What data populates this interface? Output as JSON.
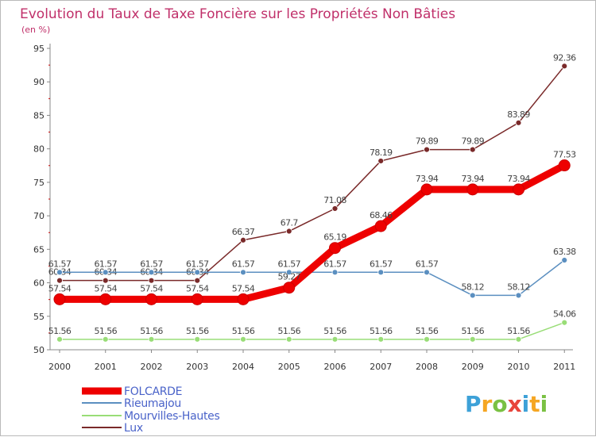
{
  "chart_data": {
    "type": "line",
    "title": "Evolution du Taux de Taxe Foncière sur les Propriétés Non Bâties",
    "subtitle": "(en %)",
    "xlabel": "",
    "ylabel": "(en %)",
    "ylim": [
      50,
      95
    ],
    "yticks": [
      "50",
      "55",
      "60",
      "65",
      "70",
      "75",
      "80",
      "85",
      "90",
      "95"
    ],
    "categories": [
      "2000",
      "2001",
      "2002",
      "2003",
      "2004",
      "2005",
      "2006",
      "2007",
      "2008",
      "2009",
      "2010",
      "2011"
    ],
    "grid": false,
    "legend_position": "bottom-left",
    "series": [
      {
        "name": "FOLCARDE",
        "color": "#ee0000",
        "values": [
          57.54,
          57.54,
          57.54,
          57.54,
          57.54,
          59.27,
          65.19,
          68.46,
          73.94,
          73.94,
          73.94,
          77.53
        ],
        "labels": [
          "57.54",
          "57.54",
          "57.54",
          "57.54",
          "57.54",
          "59.27",
          "65.19",
          "68.46",
          "73.94",
          "73.94",
          "73.94",
          "77.53"
        ]
      },
      {
        "name": "Rieumajou",
        "color": "#5b8fc0",
        "values": [
          61.57,
          61.57,
          61.57,
          61.57,
          61.57,
          61.57,
          61.57,
          61.57,
          61.57,
          58.12,
          58.12,
          63.38
        ],
        "labels": [
          "61.57",
          "61.57",
          "61.57",
          "61.57",
          "61.57",
          "61.57",
          "61.57",
          "61.57",
          "61.57",
          "58.12",
          "58.12",
          "63.38"
        ]
      },
      {
        "name": "Mourvilles-Hautes",
        "color": "#99dd77",
        "values": [
          51.56,
          51.56,
          51.56,
          51.56,
          51.56,
          51.56,
          51.56,
          51.56,
          51.56,
          51.56,
          51.56,
          54.06
        ],
        "labels": [
          "51.56",
          "51.56",
          "51.56",
          "51.56",
          "51.56",
          "51.56",
          "51.56",
          "51.56",
          "51.56",
          "51.56",
          "51.56",
          "54.06"
        ]
      },
      {
        "name": "Lux",
        "color": "#7a2a2a",
        "values": [
          60.34,
          60.34,
          60.34,
          60.34,
          66.37,
          67.7,
          71.08,
          78.19,
          79.89,
          79.89,
          83.89,
          92.36
        ],
        "labels": [
          "60.34",
          "60.34",
          "60.34",
          "60.34",
          "66.37",
          "67.7",
          "71.08",
          "78.19",
          "79.89",
          "79.89",
          "83.89",
          "92.36"
        ]
      }
    ]
  },
  "logo": {
    "letters": [
      "P",
      "r",
      "o",
      "x",
      "i",
      "t",
      "i"
    ],
    "colors": [
      "#3da1d8",
      "#f5a623",
      "#7ac143",
      "#e8453c",
      "#3da1d8",
      "#f5a623",
      "#7ac143"
    ]
  }
}
